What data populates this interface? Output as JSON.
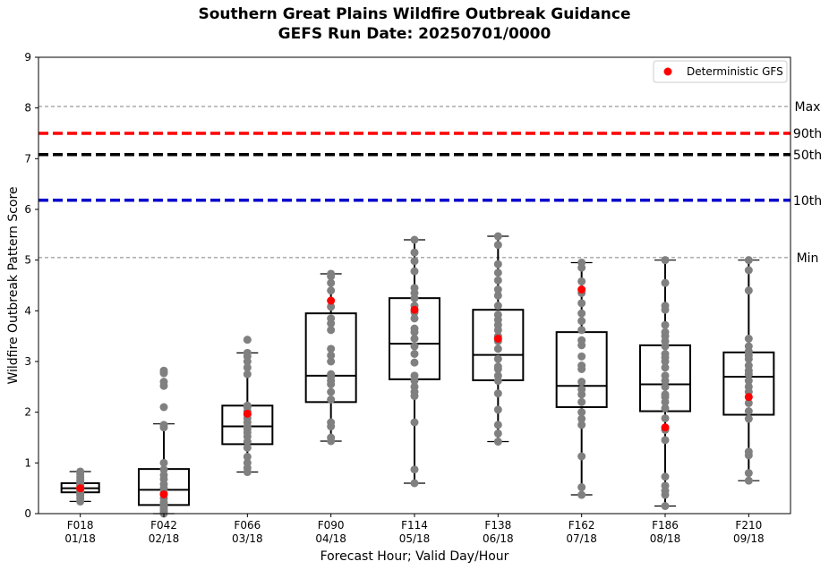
{
  "chart_data": {
    "type": "box",
    "title": "Southern Great Plains Wildfire Outbreak Guidance",
    "subtitle": "GEFS Run Date: 20250701/0000",
    "xlabel": "Forecast Hour; Valid Day/Hour",
    "ylabel": "Wildfire Outbreak Pattern Score",
    "ylim": [
      0,
      9
    ],
    "yticks": [
      "0",
      "1",
      "2",
      "3",
      "4",
      "5",
      "6",
      "7",
      "8",
      "9"
    ],
    "grid": false,
    "legend": {
      "placement": "top-right",
      "entries": [
        "Deterministic GFS"
      ]
    },
    "colors": {
      "ensemble_points": "#808080",
      "deterministic": "#ff0000",
      "p90": "#ff0000",
      "p50": "#000000",
      "p10": "#0000cc",
      "minmax": "#808080"
    },
    "reference_lines": [
      {
        "label": "Max",
        "value": 8.03,
        "style": "thin-dashed",
        "color": "#808080"
      },
      {
        "label": "90th",
        "value": 7.5,
        "style": "thick-dashed",
        "color": "#ff0000"
      },
      {
        "label": "50th",
        "value": 7.08,
        "style": "thick-dashed",
        "color": "#000000"
      },
      {
        "label": "10th",
        "value": 6.18,
        "style": "thick-dashed",
        "color": "#0000cc"
      },
      {
        "label": "Min",
        "value": 5.05,
        "style": "thin-dashed",
        "color": "#808080"
      }
    ],
    "categories": [
      {
        "hour": "F018",
        "valid": "01/18",
        "whisker_low": 0.24,
        "q1": 0.42,
        "median": 0.5,
        "q3": 0.6,
        "whisker_high": 0.83,
        "deterministic": 0.5,
        "members": [
          0.24,
          0.3,
          0.36,
          0.4,
          0.43,
          0.46,
          0.48,
          0.5,
          0.52,
          0.55,
          0.58,
          0.62,
          0.66,
          0.72,
          0.78,
          0.83
        ]
      },
      {
        "hour": "F042",
        "valid": "02/18",
        "whisker_low": 0.0,
        "q1": 0.17,
        "median": 0.47,
        "q3": 0.88,
        "whisker_high": 1.77,
        "deterministic": 0.38,
        "members": [
          0.0,
          0.03,
          0.07,
          0.12,
          0.17,
          0.22,
          0.3,
          0.4,
          0.5,
          0.58,
          0.68,
          0.76,
          0.87,
          1.0,
          1.7,
          1.75,
          2.1,
          2.52,
          2.6,
          2.77,
          2.82
        ]
      },
      {
        "hour": "F066",
        "valid": "03/18",
        "whisker_low": 0.82,
        "q1": 1.37,
        "median": 1.72,
        "q3": 2.13,
        "whisker_high": 3.17,
        "deterministic": 1.97,
        "members": [
          0.82,
          0.9,
          1.0,
          1.12,
          1.3,
          1.42,
          1.52,
          1.6,
          1.67,
          1.72,
          1.8,
          1.88,
          1.95,
          2.02,
          2.1,
          2.13,
          2.75,
          2.88,
          3.0,
          3.1,
          3.17,
          3.43
        ]
      },
      {
        "hour": "F090",
        "valid": "04/18",
        "whisker_low": 1.43,
        "q1": 2.2,
        "median": 2.72,
        "q3": 3.95,
        "whisker_high": 4.73,
        "deterministic": 4.2,
        "members": [
          1.43,
          1.5,
          1.72,
          1.8,
          2.25,
          2.4,
          2.55,
          2.62,
          2.7,
          2.75,
          3.0,
          3.12,
          3.25,
          3.62,
          3.75,
          3.85,
          4.08,
          4.4,
          4.55,
          4.68,
          4.73
        ]
      },
      {
        "hour": "F114",
        "valid": "05/18",
        "whisker_low": 0.6,
        "q1": 2.65,
        "median": 3.35,
        "q3": 4.25,
        "whisker_high": 5.4,
        "deterministic": 4.02,
        "members": [
          0.6,
          0.87,
          1.8,
          2.32,
          2.4,
          2.5,
          2.62,
          2.72,
          2.98,
          3.15,
          3.3,
          3.45,
          3.58,
          3.65,
          3.85,
          3.97,
          4.1,
          4.25,
          4.35,
          4.45,
          4.78,
          4.98,
          5.15,
          5.4
        ]
      },
      {
        "hour": "F138",
        "valid": "06/18",
        "whisker_low": 1.42,
        "q1": 2.63,
        "median": 3.13,
        "q3": 4.02,
        "whisker_high": 5.47,
        "deterministic": 3.45,
        "members": [
          1.42,
          1.58,
          1.75,
          2.05,
          2.37,
          2.62,
          2.72,
          2.85,
          2.9,
          3.05,
          3.25,
          3.4,
          3.5,
          3.62,
          3.72,
          3.82,
          3.92,
          4.1,
          4.3,
          4.42,
          4.6,
          4.75,
          4.92,
          5.3,
          5.47
        ]
      },
      {
        "hour": "F162",
        "valid": "07/18",
        "whisker_low": 0.37,
        "q1": 2.1,
        "median": 2.52,
        "q3": 3.58,
        "whisker_high": 4.95,
        "deterministic": 4.42,
        "members": [
          0.37,
          0.52,
          1.13,
          1.75,
          1.87,
          2.0,
          2.2,
          2.35,
          2.45,
          2.6,
          2.85,
          2.92,
          3.1,
          3.32,
          3.42,
          3.62,
          3.8,
          3.95,
          4.15,
          4.35,
          4.58,
          4.85,
          4.95
        ]
      },
      {
        "hour": "F186",
        "valid": "08/18",
        "whisker_low": 0.15,
        "q1": 2.02,
        "median": 2.55,
        "q3": 3.32,
        "whisker_high": 5.0,
        "deterministic": 1.7,
        "members": [
          0.15,
          0.37,
          0.45,
          0.55,
          0.73,
          1.45,
          1.65,
          1.88,
          2.08,
          2.2,
          2.3,
          2.35,
          2.5,
          2.62,
          2.72,
          2.88,
          3.0,
          3.08,
          3.15,
          3.3,
          3.4,
          3.5,
          3.58,
          3.72,
          4.02,
          4.1,
          4.55,
          5.0
        ]
      },
      {
        "hour": "F210",
        "valid": "09/18",
        "whisker_low": 0.65,
        "q1": 1.95,
        "median": 2.7,
        "q3": 3.18,
        "whisker_high": 5.0,
        "deterministic": 2.3,
        "members": [
          0.65,
          0.8,
          1.15,
          1.22,
          1.87,
          2.02,
          2.18,
          2.4,
          2.5,
          2.62,
          2.75,
          2.82,
          2.92,
          3.05,
          3.12,
          3.2,
          3.3,
          3.45,
          4.4,
          4.8,
          5.0
        ]
      }
    ]
  }
}
